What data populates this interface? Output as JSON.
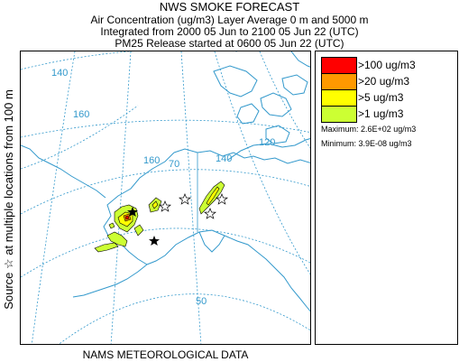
{
  "header": {
    "title": "NWS SMOKE FORECAST",
    "line2": "Air Concentration (ug/m3) Layer Average    0 m and  5000 m",
    "line3": "Integrated from 2000 05 Jun to 2100 05 Jun 22 (UTC)",
    "line4": "PM25 Release started at 0600 05 Jun 22 (UTC)"
  },
  "side_label": "Source ☆  at multiple locations    from  100 m",
  "bottom_label": "NAMS METEOROLOGICAL DATA",
  "legend": {
    "items": [
      {
        "label": ">100 ug/m3",
        "color": "#ff0000"
      },
      {
        "label": ">20 ug/m3",
        "color": "#ff9900"
      },
      {
        "label": ">5 ug/m3",
        "color": "#ffff00"
      },
      {
        "label": ">1 ug/m3",
        "color": "#ccff33"
      }
    ],
    "maximum": "Maximum: 2.6E+02 ug/m3",
    "minimum": "Minimum: 3.9E-08 ug/m3"
  },
  "map": {
    "grid_labels": {
      "lon_140_top": "140",
      "lon_160": "160",
      "lon_160_b": "160",
      "lon_140_right": "140",
      "lon_120": "120",
      "lat_70": "70",
      "lat_50": "50"
    },
    "colors": {
      "coast": "#3399cc",
      "grid": "#3399cc",
      "plume_light": "#ccff33",
      "plume_yellow": "#ffff00",
      "plume_orange": "#ff9900",
      "plume_red": "#ff0000"
    },
    "icons": {
      "source": "star-outline-icon",
      "receptor": "star-filled-icon"
    }
  }
}
